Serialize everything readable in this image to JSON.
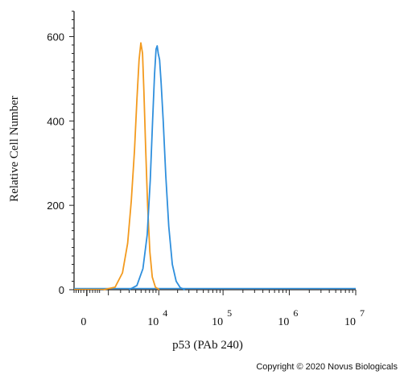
{
  "chart_data": {
    "type": "line",
    "title": "",
    "xlabel": "p53 (PAb 240)",
    "ylabel": "Relative Cell Number",
    "x_scale": "biexponential",
    "xlim": [
      -500,
      10000000
    ],
    "ylim": [
      0,
      660
    ],
    "x_tick_values": [
      0,
      10000,
      100000,
      1000000,
      10000000
    ],
    "x_tick_bases": [
      "0",
      "10",
      "10",
      "10",
      "10"
    ],
    "x_tick_exponents": [
      "",
      "4",
      "5",
      "6",
      "7"
    ],
    "y_ticks": [
      0,
      200,
      400,
      600
    ],
    "grid": false,
    "legend": "none",
    "series": [
      {
        "color": "#f39a1e",
        "x": [
          700,
          1500,
          2200,
          2800,
          3300,
          3800,
          4200,
          4600,
          4950,
          5300,
          5600,
          6000,
          6500,
          7100,
          7800,
          8800,
          10200
        ],
        "y": [
          0,
          6,
          40,
          110,
          210,
          330,
          450,
          545,
          585,
          560,
          470,
          340,
          200,
          90,
          30,
          6,
          0
        ]
      },
      {
        "color": "#2f8fdd",
        "x": [
          3000,
          4200,
          5400,
          6400,
          7200,
          7900,
          8500,
          9000,
          9400,
          9800,
          10300,
          10900,
          11800,
          13000,
          14500,
          16500,
          19000,
          22000,
          26000
        ],
        "y": [
          0,
          10,
          50,
          130,
          260,
          400,
          510,
          570,
          578,
          560,
          545,
          490,
          400,
          270,
          150,
          60,
          20,
          5,
          0
        ]
      }
    ]
  },
  "copyright": "Copyright © 2020 Novus Biologicals"
}
